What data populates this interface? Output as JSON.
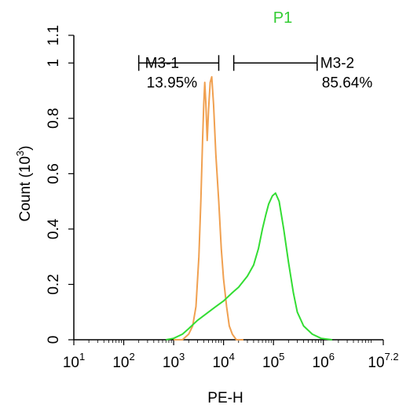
{
  "chart_data": {
    "type": "line",
    "title": "P1",
    "xlabel": "PE-H",
    "ylabel": "Count",
    "ylabel_exponent": "3",
    "x_scale": "log",
    "xlim": [
      10,
      15848932
    ],
    "ylim": [
      0,
      1.1
    ],
    "x_ticks": [
      {
        "value": 10,
        "base": "10",
        "exp": "1"
      },
      {
        "value": 100,
        "base": "10",
        "exp": "2"
      },
      {
        "value": 1000,
        "base": "10",
        "exp": "3"
      },
      {
        "value": 10000,
        "base": "10",
        "exp": "4"
      },
      {
        "value": 100000,
        "base": "10",
        "exp": "5"
      },
      {
        "value": 1000000,
        "base": "10",
        "exp": "6"
      },
      {
        "value": 15848932,
        "base": "10",
        "exp": "7.2"
      }
    ],
    "y_ticks": [
      {
        "value": 0,
        "label": "0"
      },
      {
        "value": 0.2,
        "label": "0.2"
      },
      {
        "value": 0.4,
        "label": "0.4"
      },
      {
        "value": 0.6,
        "label": "0.6"
      },
      {
        "value": 0.8,
        "label": "0.8"
      },
      {
        "value": 1.0,
        "label": "1"
      },
      {
        "value": 1.1,
        "label": "1.1"
      }
    ],
    "series": [
      {
        "color": "#f0a050",
        "points": [
          [
            1000,
            0
          ],
          [
            1500,
            0
          ],
          [
            2000,
            0.02
          ],
          [
            2400,
            0.05
          ],
          [
            2800,
            0.12
          ],
          [
            3200,
            0.3
          ],
          [
            3500,
            0.5
          ],
          [
            3800,
            0.72
          ],
          [
            4000,
            0.85
          ],
          [
            4200,
            0.93
          ],
          [
            4400,
            0.86
          ],
          [
            4700,
            0.72
          ],
          [
            5000,
            0.83
          ],
          [
            5400,
            0.93
          ],
          [
            5800,
            0.95
          ],
          [
            6300,
            0.85
          ],
          [
            7000,
            0.67
          ],
          [
            8000,
            0.5
          ],
          [
            9000,
            0.33
          ],
          [
            10000,
            0.22
          ],
          [
            11500,
            0.12
          ],
          [
            13000,
            0.05
          ],
          [
            15000,
            0.02
          ],
          [
            18000,
            0
          ],
          [
            25000,
            0
          ]
        ]
      },
      {
        "color": "#33dd33",
        "points": [
          [
            700,
            0
          ],
          [
            1000,
            0.005
          ],
          [
            1500,
            0.02
          ],
          [
            2000,
            0.04
          ],
          [
            3000,
            0.07
          ],
          [
            5000,
            0.1
          ],
          [
            7000,
            0.12
          ],
          [
            10000,
            0.14
          ],
          [
            15000,
            0.17
          ],
          [
            20000,
            0.19
          ],
          [
            30000,
            0.23
          ],
          [
            40000,
            0.27
          ],
          [
            50000,
            0.33
          ],
          [
            60000,
            0.4
          ],
          [
            70000,
            0.45
          ],
          [
            80000,
            0.49
          ],
          [
            95000,
            0.52
          ],
          [
            110000,
            0.53
          ],
          [
            130000,
            0.5
          ],
          [
            160000,
            0.4
          ],
          [
            200000,
            0.28
          ],
          [
            250000,
            0.17
          ],
          [
            300000,
            0.1
          ],
          [
            400000,
            0.05
          ],
          [
            600000,
            0.02
          ],
          [
            900000,
            0.005
          ],
          [
            1500000,
            0
          ]
        ]
      }
    ],
    "gates": [
      {
        "name": "M3-1",
        "percent": "13.95%",
        "x_start": 200,
        "x_end": 8000,
        "y": 1.0
      },
      {
        "name": "M3-2",
        "percent": "85.64%",
        "x_start": 16000,
        "x_end": 750000,
        "y": 1.0
      }
    ]
  }
}
